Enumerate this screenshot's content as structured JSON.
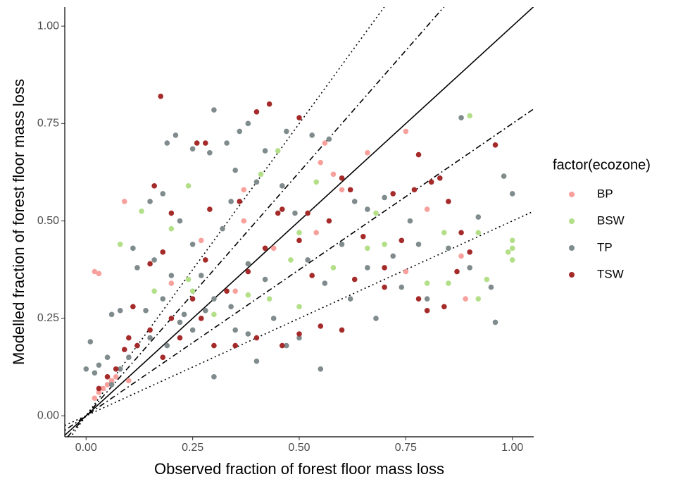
{
  "chart_data": {
    "type": "scatter",
    "x_label": "Observed fraction of forest floor mass loss",
    "y_label": "Modelled fraction of forest floor mass loss",
    "legend_title": "factor(ecozone)",
    "legend_position": "right",
    "grid": false,
    "xlim": [
      -0.05,
      1.05
    ],
    "ylim": [
      -0.054,
      1.049
    ],
    "xticks": [
      {
        "value": 0,
        "label": "0.00"
      },
      {
        "value": 0.25,
        "label": "0.25"
      },
      {
        "value": 0.5,
        "label": "0.50"
      },
      {
        "value": 0.75,
        "label": "0.75"
      },
      {
        "value": 1,
        "label": "1.00"
      }
    ],
    "yticks": [
      {
        "value": 0,
        "label": "0.00"
      },
      {
        "value": 0.25,
        "label": "0.25"
      },
      {
        "value": 0.5,
        "label": "0.50"
      },
      {
        "value": 0.75,
        "label": "0.75"
      },
      {
        "value": 1,
        "label": "1.00"
      }
    ],
    "reference_lines": [
      {
        "slope": 1.5,
        "dash": "dotted"
      },
      {
        "slope": 1.25,
        "dash": "dotdash"
      },
      {
        "slope": 1,
        "dash": "solid"
      },
      {
        "slope": 0.75,
        "dash": "dotdash"
      },
      {
        "slope": 0.5,
        "dash": "dotted"
      }
    ],
    "series": [
      {
        "name": "BP",
        "color": "#f8a09c",
        "x": [
          0.02,
          0.03,
          0.09,
          0.02,
          0.03,
          0.04,
          0.05,
          0.06,
          0.07,
          0.1,
          0.37,
          0.55,
          0.56,
          0.6,
          0.66,
          0.75,
          0.8,
          0.75,
          0.88,
          0.89,
          0.35,
          0.27,
          0.2,
          0.58,
          0.37,
          0.54,
          0.44
        ],
        "values": [
          0.37,
          0.365,
          0.55,
          0.045,
          0.06,
          0.07,
          0.08,
          0.09,
          0.1,
          0.09,
          0.58,
          0.65,
          0.7,
          0.58,
          0.675,
          0.73,
          0.53,
          0.37,
          0.41,
          0.3,
          0.32,
          0.45,
          0.34,
          0.62,
          0.5,
          0.47,
          0.43
        ]
      },
      {
        "name": "BSW",
        "color": "#b3df88",
        "x": [
          0.13,
          0.2,
          0.24,
          0.41,
          0.45,
          0.54,
          0.68,
          0.9,
          0.84,
          0.92,
          1.0,
          1.0,
          0.99,
          1.0,
          0.92,
          0.94,
          0.85,
          0.58,
          0.66,
          0.5,
          0.48,
          0.3,
          0.38,
          0.25,
          0.08,
          0.16,
          0.5,
          0.43,
          0.8,
          0.24,
          0.7
        ],
        "values": [
          0.525,
          0.48,
          0.59,
          0.62,
          0.68,
          0.6,
          0.52,
          0.77,
          0.47,
          0.47,
          0.45,
          0.43,
          0.42,
          0.4,
          0.3,
          0.35,
          0.34,
          0.38,
          0.43,
          0.28,
          0.4,
          0.26,
          0.31,
          0.32,
          0.44,
          0.32,
          0.47,
          0.3,
          0.34,
          0.35,
          0.44
        ]
      },
      {
        "name": "TP",
        "color": "#7f8b8c",
        "x": [
          0.0,
          0.01,
          0.02,
          0.03,
          0.05,
          0.06,
          0.08,
          0.11,
          0.15,
          0.19,
          0.21,
          0.25,
          0.3,
          0.29,
          0.33,
          0.36,
          0.38,
          0.42,
          0.47,
          0.53,
          0.57,
          0.63,
          0.66,
          0.7,
          0.76,
          0.88,
          0.98,
          1.0,
          0.96,
          0.92,
          0.95,
          0.85,
          0.9,
          0.8,
          0.72,
          0.6,
          0.55,
          0.5,
          0.47,
          0.44,
          0.4,
          0.38,
          0.35,
          0.3,
          0.3,
          0.28,
          0.25,
          0.22,
          0.2,
          0.18,
          0.15,
          0.12,
          0.1,
          0.08,
          0.06,
          0.14,
          0.16,
          0.22,
          0.25,
          0.32,
          0.34,
          0.4,
          0.46,
          0.49,
          0.52,
          0.56,
          0.62,
          0.68,
          0.74,
          0.78,
          0.66,
          0.42,
          0.38,
          0.34,
          0.27,
          0.19,
          0.23,
          0.12,
          0.18,
          0.35
        ],
        "values": [
          0.12,
          0.19,
          0.11,
          0.13,
          0.15,
          0.26,
          0.27,
          0.43,
          0.55,
          0.7,
          0.72,
          0.685,
          0.785,
          0.675,
          0.7,
          0.73,
          0.75,
          0.68,
          0.73,
          0.72,
          0.71,
          0.55,
          0.53,
          0.56,
          0.5,
          0.765,
          0.615,
          0.57,
          0.24,
          0.51,
          0.33,
          0.43,
          0.38,
          0.3,
          0.41,
          0.44,
          0.12,
          0.2,
          0.18,
          0.25,
          0.14,
          0.21,
          0.22,
          0.1,
          0.3,
          0.27,
          0.22,
          0.24,
          0.36,
          0.3,
          0.2,
          0.18,
          0.15,
          0.12,
          0.08,
          0.27,
          0.4,
          0.5,
          0.44,
          0.48,
          0.55,
          0.6,
          0.59,
          0.52,
          0.4,
          0.34,
          0.3,
          0.25,
          0.33,
          0.44,
          0.38,
          0.35,
          0.39,
          0.28,
          0.36,
          0.18,
          0.26,
          0.38,
          0.57,
          0.63
        ]
      },
      {
        "name": "TSW",
        "color": "#a52a2a",
        "x": [
          0.175,
          0.43,
          0.4,
          0.5,
          0.6,
          0.81,
          0.78,
          0.96,
          0.83,
          0.52,
          0.46,
          0.36,
          0.29,
          0.2,
          0.16,
          0.18,
          0.15,
          0.26,
          0.28,
          0.62,
          0.57,
          0.72,
          0.77,
          0.9,
          0.87,
          0.84,
          0.8,
          0.78,
          0.7,
          0.6,
          0.55,
          0.5,
          0.46,
          0.4,
          0.35,
          0.3,
          0.27,
          0.25,
          0.22,
          0.18,
          0.15,
          0.12,
          0.1,
          0.09,
          0.07,
          0.05,
          0.03,
          0.11,
          0.2,
          0.33,
          0.42,
          0.5,
          0.65,
          0.7,
          0.85,
          0.88,
          0.74,
          0.63,
          0.53,
          0.38,
          0.28,
          0.45
        ],
        "values": [
          0.82,
          0.8,
          0.78,
          0.765,
          0.61,
          0.6,
          0.67,
          0.695,
          0.61,
          0.52,
          0.53,
          0.55,
          0.53,
          0.52,
          0.59,
          0.42,
          0.39,
          0.7,
          0.7,
          0.58,
          0.5,
          0.57,
          0.58,
          0.42,
          0.37,
          0.28,
          0.27,
          0.3,
          0.33,
          0.22,
          0.23,
          0.21,
          0.18,
          0.2,
          0.18,
          0.18,
          0.25,
          0.3,
          0.2,
          0.15,
          0.22,
          0.18,
          0.2,
          0.17,
          0.12,
          0.1,
          0.07,
          0.28,
          0.25,
          0.32,
          0.43,
          0.45,
          0.46,
          0.38,
          0.55,
          0.47,
          0.45,
          0.35,
          0.36,
          0.37,
          0.4,
          0.52
        ]
      }
    ]
  }
}
